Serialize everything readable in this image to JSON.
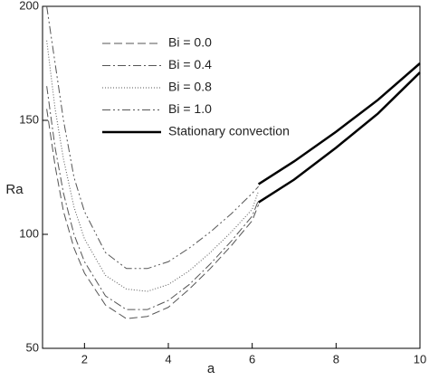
{
  "chart_data": {
    "type": "line",
    "xlabel": "a",
    "ylabel": "Ra",
    "xlim": [
      1,
      10
    ],
    "xticks": [
      2,
      4,
      6,
      8,
      10
    ],
    "ylim": [
      50,
      200
    ],
    "yticks": [
      50,
      100,
      150,
      200
    ],
    "series": [
      {
        "name": "Bi = 0.0",
        "color": "#555555",
        "dash": "9,4",
        "width": 1,
        "x": [
          1.1,
          1.3,
          1.5,
          1.75,
          2,
          2.5,
          3,
          3.5,
          4,
          4.5,
          5,
          5.5,
          6,
          6.15
        ],
        "values": [
          155,
          130,
          110,
          94,
          83,
          69,
          63,
          64,
          68,
          76,
          85,
          95,
          106,
          113
        ]
      },
      {
        "name": "Bi = 0.4",
        "color": "#555555",
        "dash": "9,3,2,3",
        "width": 1,
        "x": [
          1.1,
          1.3,
          1.5,
          1.75,
          2,
          2.5,
          3,
          3.5,
          4,
          4.5,
          5,
          5.5,
          6,
          6.15
        ],
        "values": [
          165,
          138,
          118,
          100,
          88,
          73,
          67,
          67,
          71,
          78,
          87,
          97,
          108,
          115
        ]
      },
      {
        "name": "Bi = 0.8",
        "color": "#555555",
        "dash": "1,2",
        "width": 1,
        "x": [
          1.1,
          1.3,
          1.5,
          1.75,
          2,
          2.5,
          3,
          3.5,
          4,
          4.5,
          5,
          5.5,
          6,
          6.15
        ],
        "values": [
          185,
          155,
          133,
          112,
          98,
          82,
          76,
          75,
          78,
          84,
          92,
          101,
          111,
          119
        ]
      },
      {
        "name": "Bi = 1.0",
        "color": "#555555",
        "dash": "9,3,2,3,2,3",
        "width": 1,
        "x": [
          1.1,
          1.3,
          1.5,
          1.75,
          2,
          2.5,
          3,
          3.5,
          4,
          4.5,
          5,
          5.5,
          6,
          6.15
        ],
        "values": [
          200,
          175,
          150,
          125,
          110,
          92,
          85,
          85,
          88,
          94,
          101,
          109,
          118,
          121
        ]
      },
      {
        "name": "Stationary convection",
        "color": "#000000",
        "dash": "none",
        "width": 2.5,
        "x": [
          6.15,
          7,
          8,
          9,
          10
        ],
        "values": [
          122,
          132,
          145,
          159,
          175
        ]
      },
      {
        "color": "#000000",
        "dash": "none",
        "width": 2.5,
        "x": [
          6.15,
          7,
          8,
          9,
          10
        ],
        "values": [
          114,
          124,
          138,
          153,
          171
        ]
      }
    ]
  }
}
